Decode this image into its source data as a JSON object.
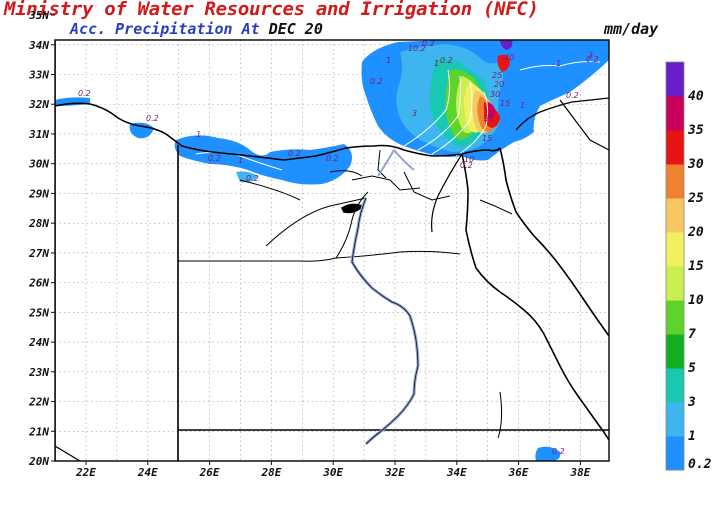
{
  "header": {
    "title": "Ministry of Water Resources and Irrigation (NFC)",
    "subtitle_prefix": "Acc. Precipitation  At",
    "subtitle_date": "DEC 20",
    "units": "mm/day"
  },
  "axes": {
    "lat_labels": [
      "20N",
      "21N",
      "22N",
      "23N",
      "24N",
      "25N",
      "26N",
      "27N",
      "28N",
      "29N",
      "30N",
      "31N",
      "32N",
      "33N",
      "34N",
      "35N"
    ],
    "lon_labels": [
      "22E",
      "24E",
      "26E",
      "28E",
      "30E",
      "32E",
      "34E",
      "36E",
      "38E"
    ]
  },
  "colorbar": {
    "levels": [
      "0.2",
      "1",
      "3",
      "5",
      "7",
      "10",
      "15",
      "20",
      "25",
      "30",
      "35",
      "40"
    ],
    "colors": [
      "#1e90ff",
      "#3fb5f0",
      "#18c8b0",
      "#10b020",
      "#5ed32c",
      "#c8f050",
      "#f0f060",
      "#f6c864",
      "#ef8230",
      "#e81414",
      "#c8005a",
      "#6a1ec8"
    ]
  },
  "contour_labels": [
    "0.2",
    "0.2",
    "0.2",
    "1",
    "0.2",
    "1",
    "0.2",
    "0.2",
    "0.2",
    "1",
    "0.2",
    "3",
    "10.2",
    "1",
    "0.2",
    "1",
    "0.2",
    "0.2",
    "40",
    "25",
    "20",
    "30",
    "15",
    "10",
    "30",
    "15",
    "1",
    "3",
    "0.2",
    "0.2"
  ],
  "map": {
    "land_color": "#ffffff",
    "border_color": "#000000",
    "nile_color": "#8fa3d6",
    "grid_color": "#9a9a9a"
  }
}
